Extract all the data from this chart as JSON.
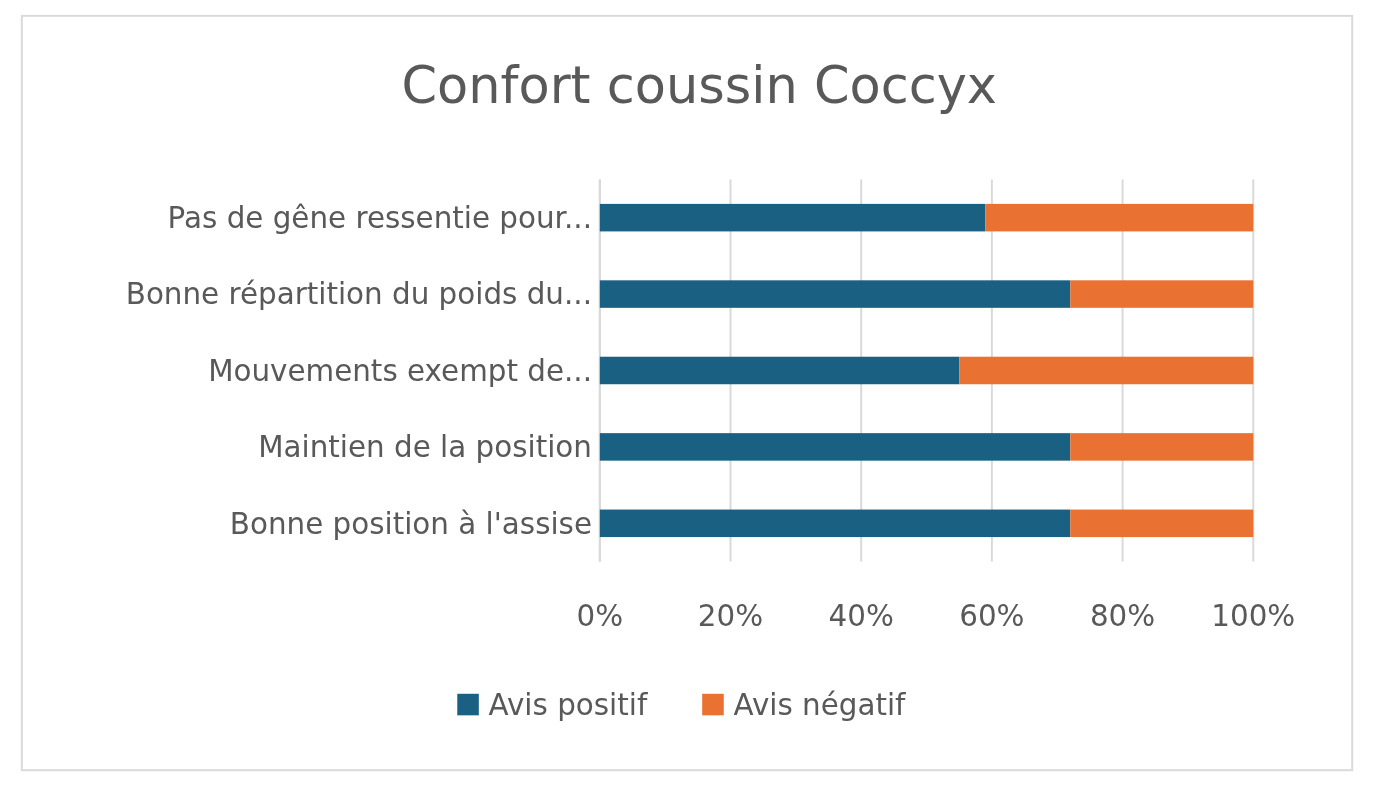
{
  "chart_data": {
    "type": "bar",
    "title": "Confort coussin Coccyx",
    "orientation": "horizontal",
    "stacked": true,
    "categories": [
      "Pas de gêne ressentie pour...",
      "Bonne répartition du poids du...",
      "Mouvements exempt de...",
      "Maintien de la position",
      "Bonne position à l'assise"
    ],
    "series": [
      {
        "name": "Avis positif",
        "color": "#1a6082",
        "values": [
          59,
          72,
          55,
          72,
          72
        ]
      },
      {
        "name": "Avis négatif",
        "color": "#e97132",
        "values": [
          41,
          28,
          45,
          28,
          28
        ]
      }
    ],
    "xlim": [
      0,
      100
    ],
    "xticks": [
      {
        "value": 0,
        "label": "0%"
      },
      {
        "value": 20,
        "label": "20%"
      },
      {
        "value": 40,
        "label": "40%"
      },
      {
        "value": 60,
        "label": "60%"
      },
      {
        "value": 80,
        "label": "80%"
      },
      {
        "value": 100,
        "label": "100%"
      }
    ],
    "grid": "x",
    "legend": "bottom"
  }
}
